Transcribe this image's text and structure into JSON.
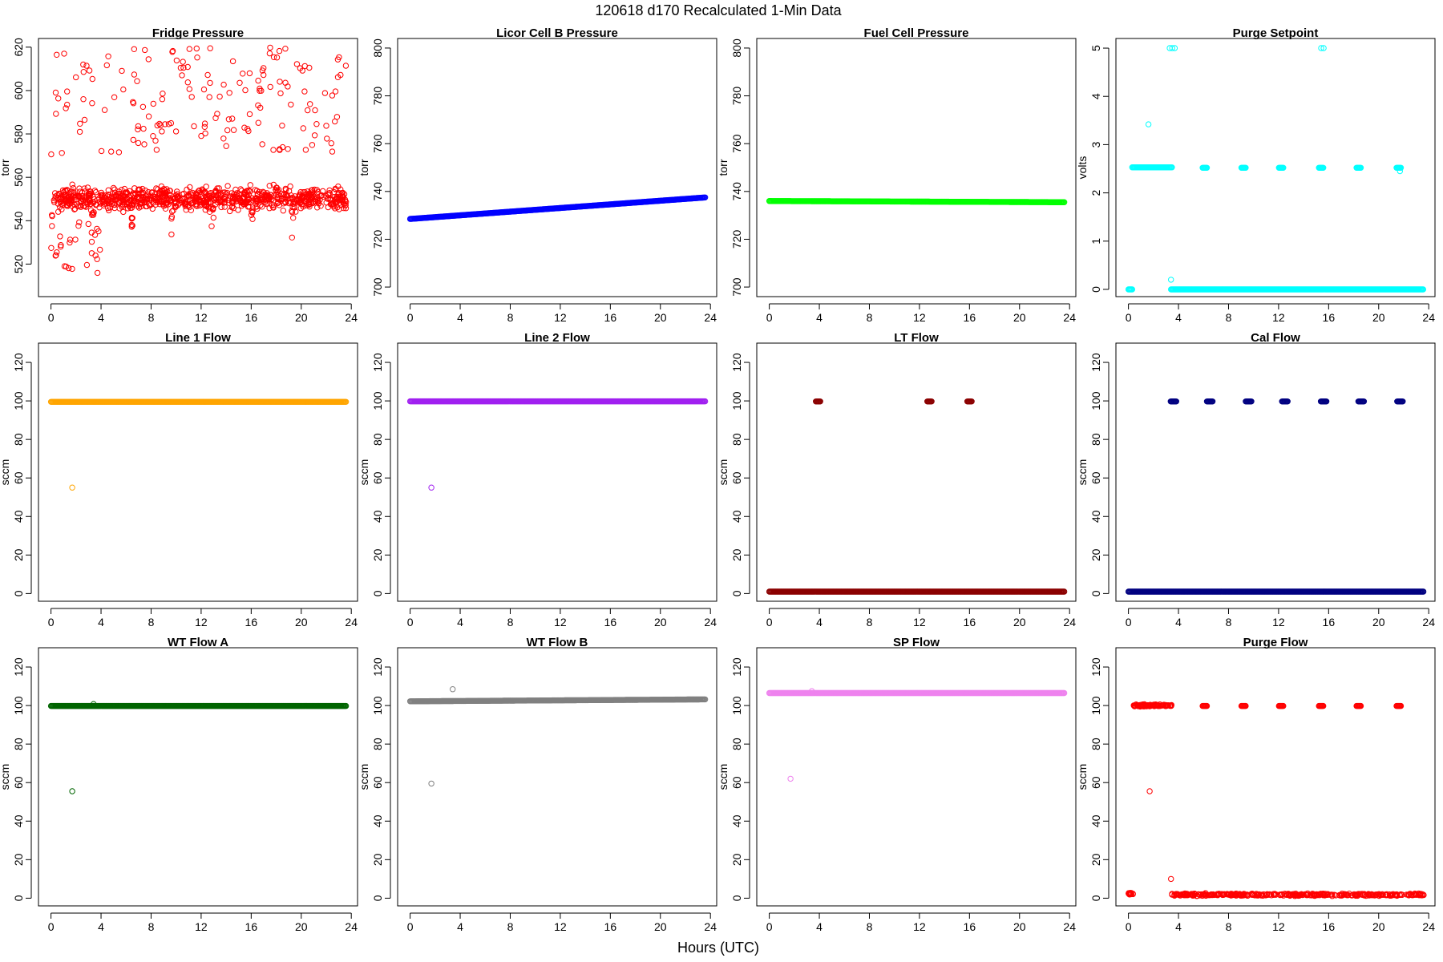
{
  "figure": {
    "title": "120618   d170   Recalculated 1-Min Data",
    "xlabel": "Hours (UTC)"
  },
  "chart_data": [
    {
      "type": "scatter",
      "title": "Fridge Pressure",
      "xlabel": "",
      "ylabel": "torr",
      "xlim": [
        -1,
        24.5
      ],
      "ylim": [
        505,
        624
      ],
      "xticks": [
        0,
        4,
        8,
        12,
        16,
        20,
        24
      ],
      "yticks": [
        520,
        540,
        560,
        580,
        600,
        620
      ],
      "color": "#ff0000",
      "marker": "open-circle",
      "grid": false,
      "series": [
        {
          "gen": "scatter",
          "x_range": [
            0,
            23.6
          ],
          "n": 900,
          "seed": 11,
          "y_base": 550,
          "y_spread": 7,
          "dip_every": 3.2,
          "dip_depth": 22,
          "upper_y_range": [
            570,
            620
          ],
          "upper_count": 160,
          "extra_low": 25
        }
      ]
    },
    {
      "type": "scatter",
      "title": "Licor Cell B Pressure",
      "xlabel": "",
      "ylabel": "torr",
      "xlim": [
        -1,
        24.5
      ],
      "ylim": [
        696,
        804
      ],
      "xticks": [
        0,
        4,
        8,
        12,
        16,
        20,
        24
      ],
      "yticks": [
        700,
        720,
        740,
        760,
        780,
        800
      ],
      "color": "#0000ff",
      "marker": "open-circle",
      "grid": false,
      "series": [
        {
          "gen": "trend",
          "x_range": [
            0,
            23.6
          ],
          "y_start": 728.5,
          "y_end": 737.5
        }
      ]
    },
    {
      "type": "scatter",
      "title": "Fuel Cell Pressure",
      "xlabel": "",
      "ylabel": "torr",
      "xlim": [
        -1,
        24.5
      ],
      "ylim": [
        696,
        804
      ],
      "xticks": [
        0,
        4,
        8,
        12,
        16,
        20,
        24
      ],
      "yticks": [
        700,
        720,
        740,
        760,
        780,
        800
      ],
      "color": "#00ff00",
      "marker": "open-circle",
      "grid": false,
      "series": [
        {
          "gen": "trend",
          "x_range": [
            0,
            23.6
          ],
          "y_start": 736,
          "y_end": 735.5
        }
      ]
    },
    {
      "type": "scatter",
      "title": "Purge Setpoint",
      "xlabel": "",
      "ylabel": "volts",
      "xlim": [
        -1,
        24.5
      ],
      "ylim": [
        -0.15,
        5.2
      ],
      "xticks": [
        0,
        4,
        8,
        12,
        16,
        20,
        24
      ],
      "yticks": [
        0,
        1,
        2,
        3,
        4,
        5
      ],
      "color": "#00ffff",
      "marker": "open-circle",
      "grid": false,
      "series": [
        {
          "gen": "flat",
          "x_range": [
            0,
            0.3
          ],
          "y": 0
        },
        {
          "gen": "flat",
          "x_range": [
            3.4,
            23.6
          ],
          "y": 0
        },
        {
          "gen": "flat",
          "x_range": [
            0.3,
            3.5
          ],
          "y": 2.53
        },
        {
          "gen": "clusters",
          "centers": [
            6.1,
            9.2,
            12.2,
            15.4,
            18.4,
            21.6
          ],
          "width": 0.35,
          "y": 2.52
        },
        {
          "gen": "points",
          "x": [
            1.6,
            3.3,
            3.5,
            3.7,
            15.4,
            15.6,
            3.4,
            21.7
          ],
          "y": [
            3.42,
            5.0,
            5.0,
            5.0,
            5.0,
            5.0,
            0.2,
            2.45
          ]
        }
      ]
    },
    {
      "type": "scatter",
      "title": "Line 1 Flow",
      "xlabel": "",
      "ylabel": "sccm",
      "xlim": [
        -1,
        24.5
      ],
      "ylim": [
        -4,
        130
      ],
      "xticks": [
        0,
        4,
        8,
        12,
        16,
        20,
        24
      ],
      "yticks": [
        0,
        20,
        40,
        60,
        80,
        100,
        120
      ],
      "color": "#ffa500",
      "marker": "open-circle",
      "grid": false,
      "series": [
        {
          "gen": "flat",
          "x_range": [
            0,
            23.6
          ],
          "y": 99.5
        },
        {
          "gen": "points",
          "x": [
            1.7
          ],
          "y": [
            55
          ]
        }
      ]
    },
    {
      "type": "scatter",
      "title": "Line 2 Flow",
      "xlabel": "",
      "ylabel": "sccm",
      "xlim": [
        -1,
        24.5
      ],
      "ylim": [
        -4,
        130
      ],
      "xticks": [
        0,
        4,
        8,
        12,
        16,
        20,
        24
      ],
      "yticks": [
        0,
        20,
        40,
        60,
        80,
        100,
        120
      ],
      "color": "#a020f0",
      "marker": "open-circle",
      "grid": false,
      "series": [
        {
          "gen": "flat",
          "x_range": [
            0,
            23.6
          ],
          "y": 99.8
        },
        {
          "gen": "points",
          "x": [
            1.7
          ],
          "y": [
            55
          ]
        }
      ]
    },
    {
      "type": "scatter",
      "title": "LT Flow",
      "xlabel": "",
      "ylabel": "sccm",
      "xlim": [
        -1,
        24.5
      ],
      "ylim": [
        -4,
        130
      ],
      "xticks": [
        0,
        4,
        8,
        12,
        16,
        20,
        24
      ],
      "yticks": [
        0,
        20,
        40,
        60,
        80,
        100,
        120
      ],
      "color": "#8b0000",
      "marker": "open-circle",
      "grid": false,
      "series": [
        {
          "gen": "flat",
          "x_range": [
            0,
            23.6
          ],
          "y": 1
        },
        {
          "gen": "clusters",
          "centers": [
            3.9,
            12.8,
            16.0
          ],
          "width": 0.35,
          "y": 99.7
        }
      ]
    },
    {
      "type": "scatter",
      "title": "Cal Flow",
      "xlabel": "",
      "ylabel": "sccm",
      "xlim": [
        -1,
        24.5
      ],
      "ylim": [
        -4,
        130
      ],
      "xticks": [
        0,
        4,
        8,
        12,
        16,
        20,
        24
      ],
      "yticks": [
        0,
        20,
        40,
        60,
        80,
        100,
        120
      ],
      "color": "#000080",
      "marker": "open-circle",
      "grid": false,
      "series": [
        {
          "gen": "flat",
          "x_range": [
            0,
            23.6
          ],
          "y": 1
        },
        {
          "gen": "clusters",
          "centers": [
            3.6,
            6.5,
            9.6,
            12.5,
            15.6,
            18.6,
            21.7
          ],
          "width": 0.45,
          "y": 99.7
        }
      ]
    },
    {
      "type": "scatter",
      "title": "WT Flow A",
      "xlabel": "",
      "ylabel": "sccm",
      "xlim": [
        -1,
        24.5
      ],
      "ylim": [
        -4,
        130
      ],
      "xticks": [
        0,
        4,
        8,
        12,
        16,
        20,
        24
      ],
      "yticks": [
        0,
        20,
        40,
        60,
        80,
        100,
        120
      ],
      "color": "#006400",
      "marker": "open-circle",
      "grid": false,
      "series": [
        {
          "gen": "flat",
          "x_range": [
            0,
            23.6
          ],
          "y": 99.8
        },
        {
          "gen": "points",
          "x": [
            1.7,
            3.4
          ],
          "y": [
            55.5,
            100.8
          ]
        }
      ]
    },
    {
      "type": "scatter",
      "title": "WT Flow B",
      "xlabel": "",
      "ylabel": "sccm",
      "xlim": [
        -1,
        24.5
      ],
      "ylim": [
        -4,
        130
      ],
      "xticks": [
        0,
        4,
        8,
        12,
        16,
        20,
        24
      ],
      "yticks": [
        0,
        20,
        40,
        60,
        80,
        100,
        120
      ],
      "color": "#808080",
      "marker": "open-circle",
      "grid": false,
      "series": [
        {
          "gen": "trend",
          "x_range": [
            0,
            23.6
          ],
          "y_start": 102.2,
          "y_end": 103.2
        },
        {
          "gen": "points",
          "x": [
            1.7,
            3.4
          ],
          "y": [
            59.5,
            108.5
          ]
        }
      ]
    },
    {
      "type": "scatter",
      "title": "SP Flow",
      "xlabel": "",
      "ylabel": "sccm",
      "xlim": [
        -1,
        24.5
      ],
      "ylim": [
        -4,
        130
      ],
      "xticks": [
        0,
        4,
        8,
        12,
        16,
        20,
        24
      ],
      "yticks": [
        0,
        20,
        40,
        60,
        80,
        100,
        120
      ],
      "color": "#ee82ee",
      "marker": "open-circle",
      "grid": false,
      "series": [
        {
          "gen": "flat",
          "x_range": [
            0,
            23.6
          ],
          "y": 106.5
        },
        {
          "gen": "points",
          "x": [
            1.7,
            3.4
          ],
          "y": [
            62,
            107.5
          ]
        }
      ]
    },
    {
      "type": "scatter",
      "title": "Purge Flow",
      "xlabel": "",
      "ylabel": "sccm",
      "xlim": [
        -1,
        24.5
      ],
      "ylim": [
        -4,
        130
      ],
      "xticks": [
        0,
        4,
        8,
        12,
        16,
        20,
        24
      ],
      "yticks": [
        0,
        20,
        40,
        60,
        80,
        100,
        120
      ],
      "color": "#ff0000",
      "marker": "open-circle",
      "grid": false,
      "series": [
        {
          "gen": "scatter_band",
          "x_range": [
            0,
            0.4
          ],
          "y": 2.3,
          "spread": 0.8,
          "n": 20,
          "seed": 3
        },
        {
          "gen": "scatter_band",
          "x_range": [
            3.4,
            23.6
          ],
          "y": 1.8,
          "spread": 0.9,
          "n": 400,
          "seed": 5
        },
        {
          "gen": "scatter_band",
          "x_range": [
            0.4,
            3.5
          ],
          "y": 100,
          "spread": 0.9,
          "n": 90,
          "seed": 7
        },
        {
          "gen": "clusters",
          "centers": [
            6.1,
            9.2,
            12.2,
            15.4,
            18.4,
            21.6
          ],
          "width": 0.35,
          "y": 99.8
        },
        {
          "gen": "points",
          "x": [
            1.7,
            3.4
          ],
          "y": [
            55.5,
            10
          ]
        }
      ]
    }
  ]
}
